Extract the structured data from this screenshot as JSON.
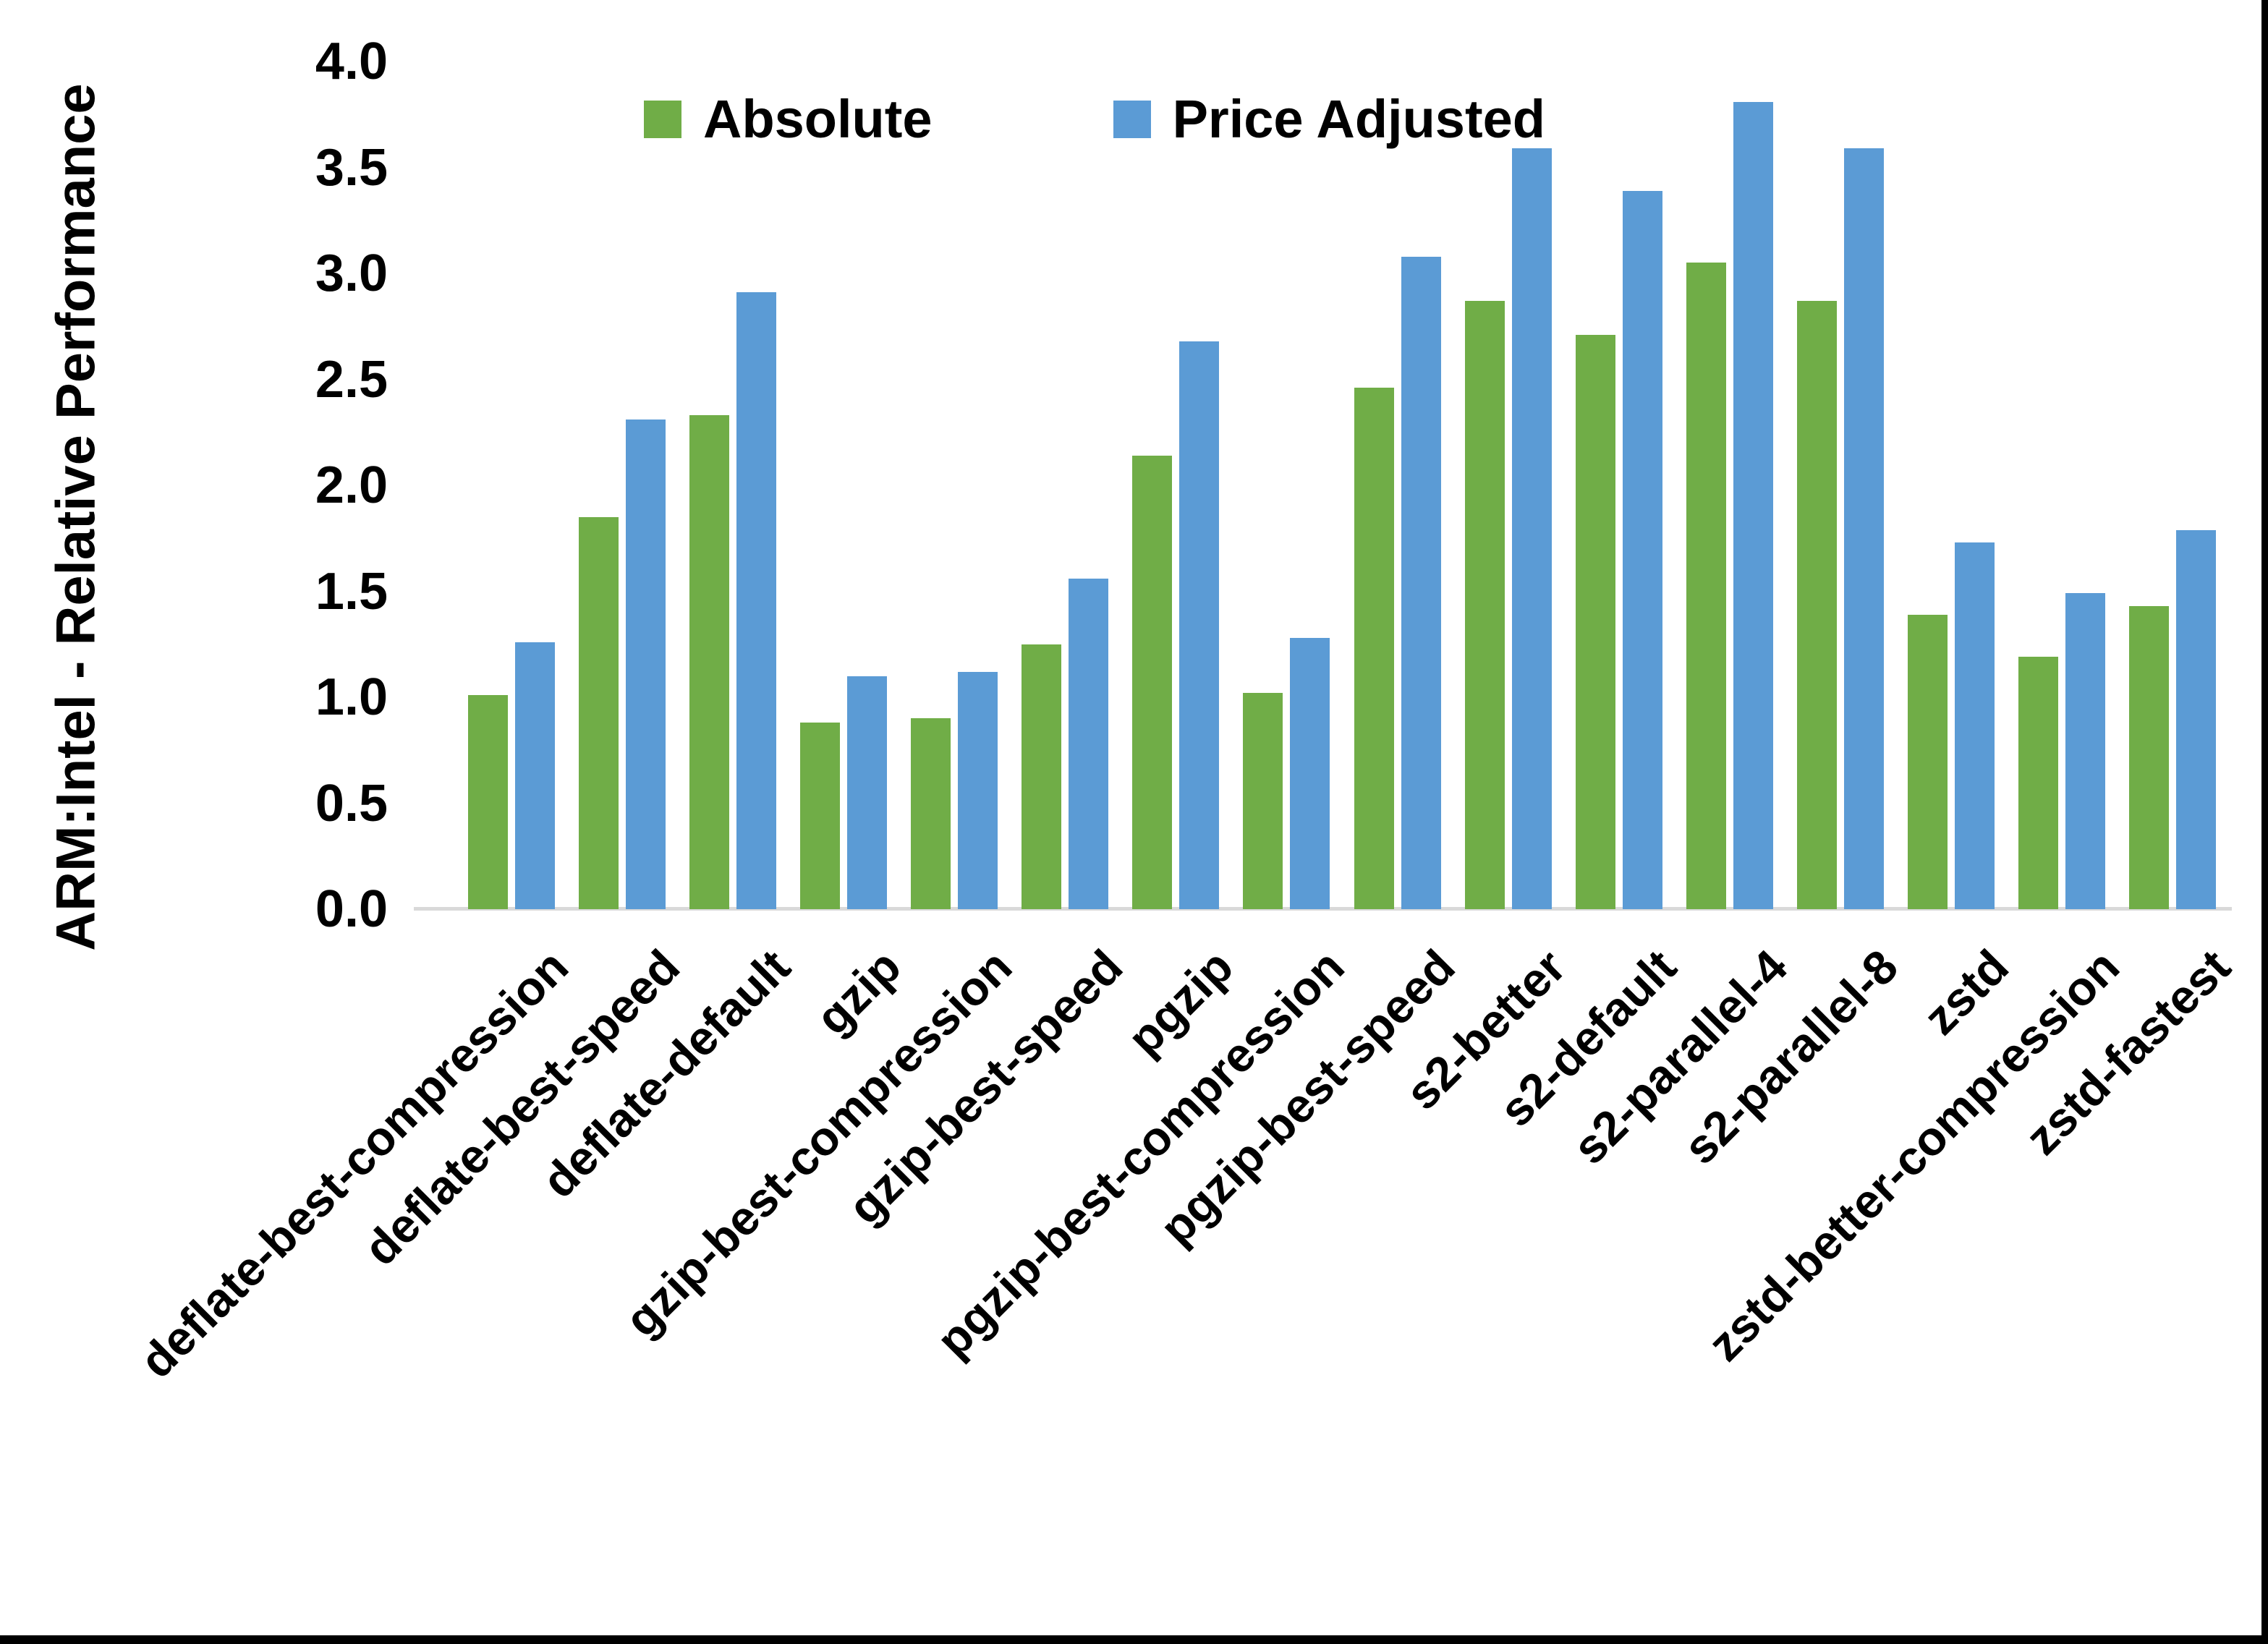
{
  "chart_data": {
    "type": "bar",
    "title": "",
    "xlabel": "",
    "ylabel": "ARM:Intel - Relative Performance",
    "ylim": [
      0.0,
      4.0
    ],
    "ytick_step": 0.5,
    "ytick_labels": [
      "0.0",
      "0.5",
      "1.0",
      "1.5",
      "2.0",
      "2.5",
      "3.0",
      "3.5",
      "4.0"
    ],
    "grid": false,
    "legend_position": "top-center-inside",
    "categories": [
      "deflate-best-compression",
      "deflate-best-speed",
      "deflate-default",
      "gzip",
      "gzip-best-compression",
      "gzip-best-speed",
      "pgzip",
      "pgzip-best-compression",
      "pgzip-best-speed",
      "s2-better",
      "s2-default",
      "s2-parallel-4",
      "s2-parallel-8",
      "zstd",
      "zstd-better-compression",
      "zstd-fastest"
    ],
    "series": [
      {
        "name": "Absolute",
        "color": "#70AD47",
        "values": [
          1.01,
          1.85,
          2.33,
          0.88,
          0.9,
          1.25,
          2.14,
          1.02,
          2.46,
          2.87,
          2.71,
          3.05,
          2.87,
          1.39,
          1.19,
          1.43
        ]
      },
      {
        "name": "Price Adjusted",
        "color": "#5B9BD5",
        "values": [
          1.26,
          2.31,
          2.91,
          1.1,
          1.12,
          1.56,
          2.68,
          1.28,
          3.08,
          3.59,
          3.39,
          3.81,
          3.59,
          1.73,
          1.49,
          1.79
        ]
      }
    ]
  },
  "colors": {
    "background": "#FFFFFF",
    "axis_line": "#D9D9D9",
    "text": "#000000",
    "frame_border": "#000000"
  }
}
